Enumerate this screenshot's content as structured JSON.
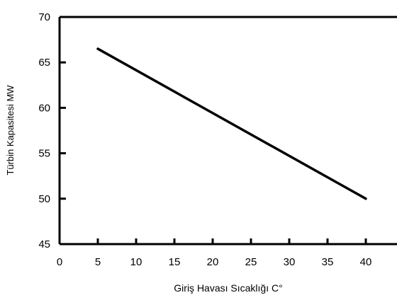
{
  "chart_data": {
    "type": "line",
    "xlabel": "Giriş Havası Sıcaklığı C°",
    "ylabel": "Türbin Kapasitesi MW",
    "xlim": [
      0,
      45
    ],
    "ylim": [
      45,
      70
    ],
    "x_ticks": [
      0,
      5,
      10,
      15,
      20,
      25,
      30,
      35,
      40
    ],
    "y_ticks": [
      45,
      50,
      55,
      60,
      65,
      70
    ],
    "grid": false,
    "series": [
      {
        "x": [
          5,
          40
        ],
        "y": [
          66.5,
          50
        ]
      }
    ],
    "line_color": "#000000"
  }
}
